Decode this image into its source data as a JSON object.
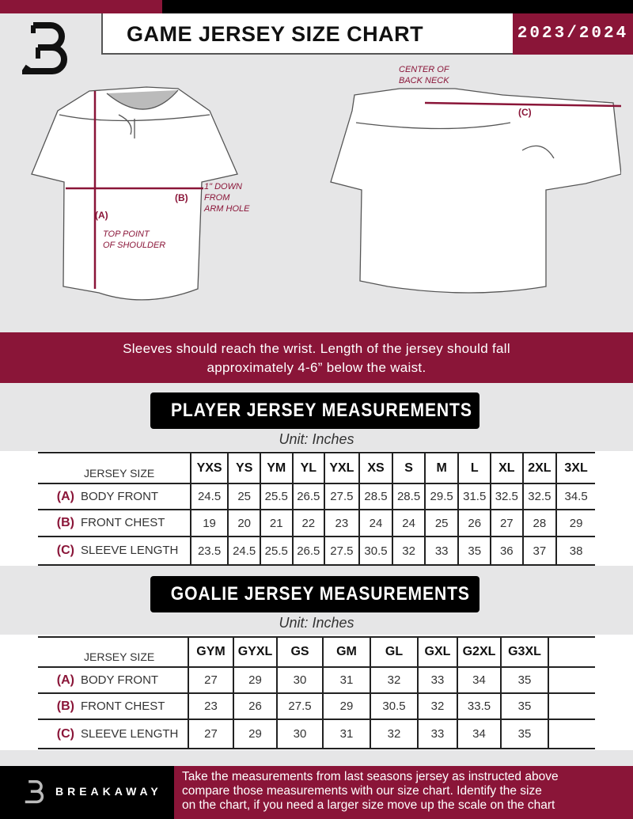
{
  "header": {
    "title": "GAME JERSEY SIZE CHART",
    "season": "2023/2024"
  },
  "diagram": {
    "labels": {
      "a": "(A)",
      "b": "(B)",
      "c": "(C)"
    },
    "notes": {
      "top_point": [
        "TOP POINT",
        "OF SHOULDER"
      ],
      "arm_hole": [
        "1\" DOWN",
        "FROM",
        "ARM HOLE"
      ],
      "back_neck": [
        "CENTER OF",
        "BACK NECK"
      ]
    }
  },
  "banner": {
    "lines": [
      "Sleeves should reach the wrist. Length of the jersey should fall",
      "approximately 4-6” below the waist."
    ]
  },
  "player": {
    "title": "PLAYER JERSEY MEASUREMENTS",
    "unit": "Unit: Inches",
    "size_label": "JERSEY SIZE",
    "sizes": [
      "YXS",
      "YS",
      "YM",
      "YL",
      "YXL",
      "XS",
      "S",
      "M",
      "L",
      "XL",
      "2XL",
      "3XL"
    ],
    "rows": [
      {
        "code": "(A)",
        "label": "BODY FRONT",
        "values": [
          "24.5",
          "25",
          "25.5",
          "26.5",
          "27.5",
          "28.5",
          "28.5",
          "29.5",
          "31.5",
          "32.5",
          "32.5",
          "34.5"
        ]
      },
      {
        "code": "(B)",
        "label": "FRONT CHEST",
        "values": [
          "19",
          "20",
          "21",
          "22",
          "23",
          "24",
          "24",
          "25",
          "26",
          "27",
          "28",
          "29"
        ]
      },
      {
        "code": "(C)",
        "label": "SLEEVE LENGTH",
        "values": [
          "23.5",
          "24.5",
          "25.5",
          "26.5",
          "27.5",
          "30.5",
          "32",
          "33",
          "35",
          "36",
          "37",
          "38"
        ]
      }
    ]
  },
  "goalie": {
    "title": "GOALIE JERSEY MEASUREMENTS",
    "unit": "Unit: Inches",
    "size_label": "JERSEY SIZE",
    "sizes": [
      "GYM",
      "GYXL",
      "GS",
      "GM",
      "GL",
      "GXL",
      "G2XL",
      "G3XL",
      ""
    ],
    "rows": [
      {
        "code": "(A)",
        "label": "BODY FRONT",
        "values": [
          "27",
          "29",
          "30",
          "31",
          "32",
          "33",
          "34",
          "35",
          ""
        ]
      },
      {
        "code": "(B)",
        "label": "FRONT CHEST",
        "values": [
          "23",
          "26",
          "27.5",
          "29",
          "30.5",
          "32",
          "33.5",
          "35",
          ""
        ]
      },
      {
        "code": "(C)",
        "label": "SLEEVE LENGTH",
        "values": [
          "27",
          "29",
          "30",
          "31",
          "32",
          "33",
          "34",
          "35",
          ""
        ]
      }
    ]
  },
  "footer": {
    "brand": "BREAKAWAY",
    "text": [
      "Take the measurements from last seasons jersey as instructed above",
      "compare those measurements  with our size chart. Identify the size",
      "on the chart, if you need a larger size move up the scale on the chart"
    ]
  },
  "colors": {
    "accent": "#8a1538",
    "black": "#000000",
    "background": "#e6e6e7"
  }
}
